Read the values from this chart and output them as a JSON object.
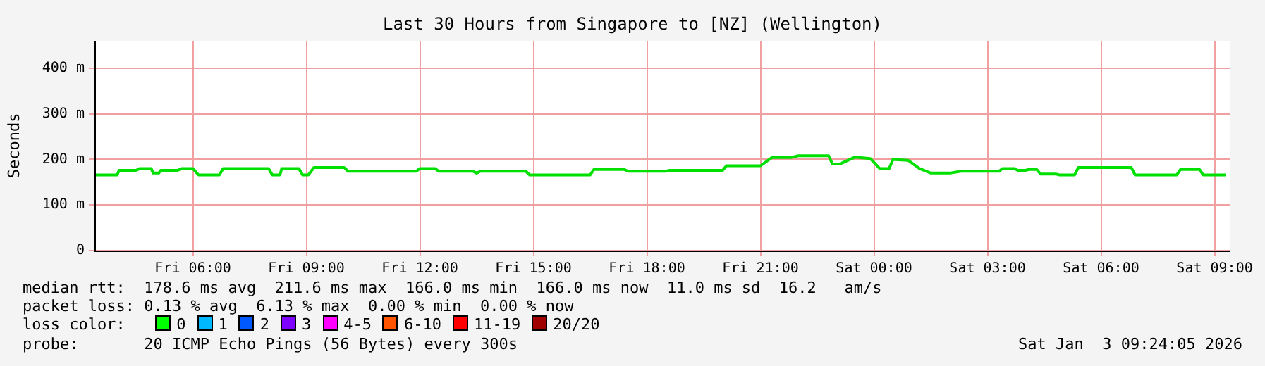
{
  "chart_data": {
    "type": "line",
    "title": "Last 30 Hours from Singapore to [NZ] (Wellington)",
    "ylabel": "Seconds",
    "x": [
      "2026-01-02T03:24",
      "2026-01-02T04:00",
      "2026-01-02T04:03",
      "2026-01-02T04:30",
      "2026-01-02T04:36",
      "2026-01-02T04:54",
      "2026-01-02T04:57",
      "2026-01-02T05:06",
      "2026-01-02T05:09",
      "2026-01-02T05:36",
      "2026-01-02T05:42",
      "2026-01-02T06:00",
      "2026-01-02T06:09",
      "2026-01-02T06:42",
      "2026-01-02T06:48",
      "2026-01-02T08:00",
      "2026-01-02T08:06",
      "2026-01-02T08:18",
      "2026-01-02T08:21",
      "2026-01-02T08:48",
      "2026-01-02T08:54",
      "2026-01-02T09:03",
      "2026-01-02T09:12",
      "2026-01-02T10:00",
      "2026-01-02T10:06",
      "2026-01-02T11:54",
      "2026-01-02T12:00",
      "2026-01-02T12:24",
      "2026-01-02T12:30",
      "2026-01-02T13:24",
      "2026-01-02T13:30",
      "2026-01-02T13:36",
      "2026-01-02T13:42",
      "2026-01-02T14:48",
      "2026-01-02T14:54",
      "2026-01-02T16:30",
      "2026-01-02T16:36",
      "2026-01-02T17:24",
      "2026-01-02T17:30",
      "2026-01-02T18:30",
      "2026-01-02T18:36",
      "2026-01-02T20:00",
      "2026-01-02T20:06",
      "2026-01-02T21:00",
      "2026-01-02T21:18",
      "2026-01-02T21:48",
      "2026-01-02T22:00",
      "2026-01-02T22:48",
      "2026-01-02T22:54",
      "2026-01-02T23:06",
      "2026-01-02T23:30",
      "2026-01-02T23:54",
      "2026-01-03T00:09",
      "2026-01-03T00:24",
      "2026-01-03T00:30",
      "2026-01-03T00:54",
      "2026-01-03T01:12",
      "2026-01-03T01:30",
      "2026-01-03T02:00",
      "2026-01-03T02:18",
      "2026-01-03T03:18",
      "2026-01-03T03:24",
      "2026-01-03T03:42",
      "2026-01-03T03:48",
      "2026-01-03T04:00",
      "2026-01-03T04:06",
      "2026-01-03T04:18",
      "2026-01-03T04:24",
      "2026-01-03T04:48",
      "2026-01-03T04:54",
      "2026-01-03T05:18",
      "2026-01-03T05:24",
      "2026-01-03T06:48",
      "2026-01-03T06:54",
      "2026-01-03T08:00",
      "2026-01-03T08:06",
      "2026-01-03T08:36",
      "2026-01-03T08:42",
      "2026-01-03T09:18"
    ],
    "series": [
      {
        "color": "#00e000",
        "values": [
          166,
          166,
          176,
          176,
          180,
          180,
          170,
          170,
          176,
          176,
          180,
          180,
          166,
          166,
          180,
          180,
          166,
          166,
          180,
          180,
          166,
          166,
          182,
          182,
          174,
          174,
          180,
          180,
          174,
          174,
          170,
          174,
          174,
          174,
          166,
          166,
          178,
          178,
          174,
          174,
          176,
          176,
          186,
          186,
          204,
          204,
          208,
          208,
          190,
          190,
          205,
          202,
          180,
          180,
          200,
          198,
          180,
          170,
          170,
          174,
          174,
          180,
          180,
          176,
          176,
          178,
          178,
          168,
          168,
          166,
          166,
          182,
          182,
          166,
          166,
          178,
          178,
          166,
          166
        ]
      }
    ],
    "xlim": [
      "2026-01-02T03:24",
      "2026-01-03T09:24"
    ],
    "ylim": [
      0,
      460
    ],
    "xticks": [
      {
        "value": "2026-01-02T06:00",
        "label": "Fri 06:00"
      },
      {
        "value": "2026-01-02T09:00",
        "label": "Fri 09:00"
      },
      {
        "value": "2026-01-02T12:00",
        "label": "Fri 12:00"
      },
      {
        "value": "2026-01-02T15:00",
        "label": "Fri 15:00"
      },
      {
        "value": "2026-01-02T18:00",
        "label": "Fri 18:00"
      },
      {
        "value": "2026-01-02T21:00",
        "label": "Fri 21:00"
      },
      {
        "value": "2026-01-03T00:00",
        "label": "Sat 00:00"
      },
      {
        "value": "2026-01-03T03:00",
        "label": "Sat 03:00"
      },
      {
        "value": "2026-01-03T06:00",
        "label": "Sat 06:00"
      },
      {
        "value": "2026-01-03T09:00",
        "label": "Sat 09:00"
      }
    ],
    "yticks": [
      0,
      {
        "value": 100,
        "label": "100 m"
      },
      {
        "value": 200,
        "label": "200 m"
      },
      {
        "value": 300,
        "label": "300 m"
      },
      {
        "value": 400,
        "label": "400 m"
      }
    ],
    "grid": true,
    "legend": false,
    "marker": "none",
    "line_style": "solid",
    "annotations": [
      "median rtt:  178.6 ms avg  211.6 ms max  166.0 ms min  166.0 ms now  11.0 ms sd  16.2   am/s",
      "packet loss: 0.13 % avg  6.13 % max  0.00 % min  0.00 % now",
      "loss color:",
      "0",
      "1",
      "2",
      "3",
      "4-5",
      "6-10",
      "11-19",
      "20/20",
      "probe:       20 ICMP Echo Pings (56 Bytes) every 300s",
      "Sat Jan  3 09:24:05 2026"
    ]
  }
}
